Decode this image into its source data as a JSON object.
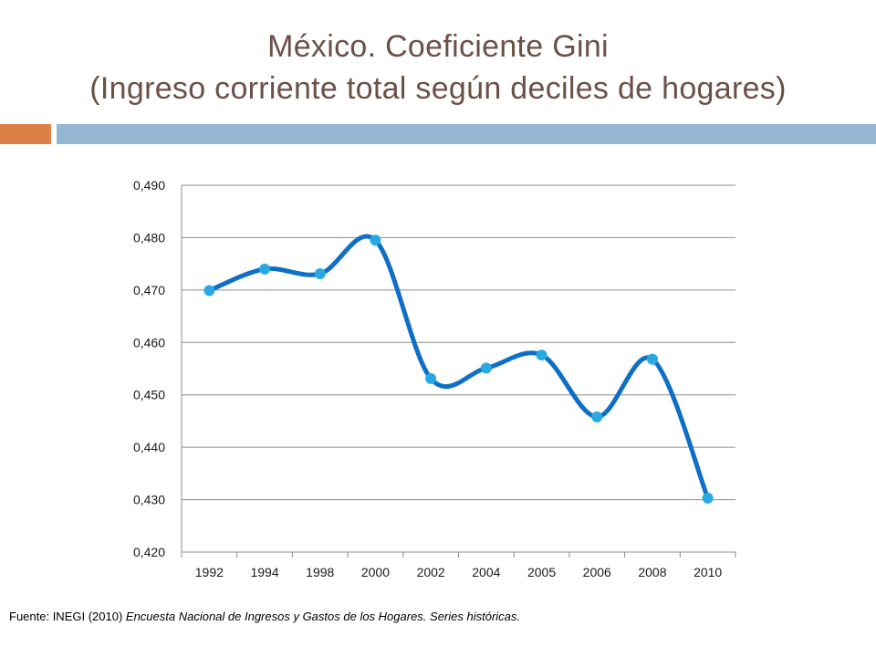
{
  "title_line1": "México. Coeficiente Gini",
  "title_line2": "(Ingreso corriente total según deciles de hogares)",
  "colors": {
    "accent_orange": "#dd8047",
    "accent_blue": "#94b6d2",
    "line": "#0f6fc6",
    "marker": "#29a9e1",
    "title": "#6b5047"
  },
  "chart_data": {
    "type": "line",
    "categories": [
      "1992",
      "1994",
      "1998",
      "2000",
      "2002",
      "2004",
      "2005",
      "2006",
      "2008",
      "2010"
    ],
    "values": [
      0.4699,
      0.474,
      0.4731,
      0.4795,
      0.4531,
      0.4551,
      0.4576,
      0.4458,
      0.4568,
      0.4303
    ],
    "ylim": [
      0.42,
      0.49
    ],
    "yticks": [
      0.42,
      0.43,
      0.44,
      0.45,
      0.46,
      0.47,
      0.48,
      0.49
    ],
    "ytick_labels": [
      "0,420",
      "0,430",
      "0,440",
      "0,450",
      "0,460",
      "0,470",
      "0,480",
      "0,490"
    ],
    "grid": true,
    "smooth": true,
    "legend": "none"
  },
  "source": {
    "prefix": "Fuente: INEGI (2010) ",
    "italic": "Encuesta Nacional de Ingresos y Gastos de los Hogares. Series históricas."
  }
}
